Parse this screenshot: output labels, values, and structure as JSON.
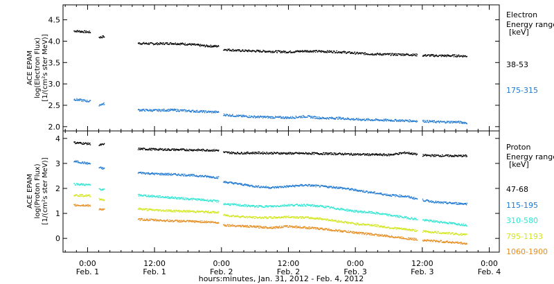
{
  "chart_data": [
    {
      "type": "scatter",
      "panel": "electron",
      "ylabel": [
        "ACE EPAM",
        "log(Electron Flux)",
        "[1/(cm²s ster MeV)]"
      ],
      "ylim": [
        1.9,
        4.85
      ],
      "yticks": [
        2.0,
        2.5,
        3.0,
        3.5,
        4.0,
        4.5
      ],
      "yticklabels": [
        "2.0",
        "2.5",
        "3.0",
        "3.5",
        "4.0",
        "4.5"
      ],
      "legend_title": [
        "Electron",
        "Energy ranges",
        "[keV]"
      ],
      "series": [
        {
          "name": "38-53",
          "color": "#000000",
          "x": [
            -2.5,
            0.5,
            2.0,
            3.0,
            9.0,
            12.0,
            15.0,
            18.0,
            21.0,
            23.5,
            24.3,
            27.0,
            30.0,
            33.0,
            36.0,
            39.0,
            42.0,
            45.0,
            48.0,
            51.0,
            54.0,
            57.0,
            60.0,
            63.0,
            66.0,
            68.0
          ],
          "y": [
            4.25,
            4.22,
            4.1,
            4.12,
            3.96,
            3.95,
            3.96,
            3.94,
            3.9,
            3.89,
            3.82,
            3.79,
            3.78,
            3.77,
            3.76,
            3.78,
            3.77,
            3.76,
            3.73,
            3.71,
            3.7,
            3.7,
            3.68,
            3.67,
            3.67,
            3.66
          ]
        },
        {
          "name": "175-315",
          "color": "#1e78d2",
          "x": [
            -2.5,
            0.5,
            2.0,
            3.0,
            9.0,
            12.0,
            15.0,
            18.0,
            21.0,
            23.5,
            24.3,
            27.0,
            30.0,
            33.0,
            36.0,
            39.0,
            42.0,
            45.0,
            48.0,
            51.0,
            54.0,
            57.0,
            60.0,
            63.0,
            66.0,
            68.0
          ],
          "y": [
            2.65,
            2.6,
            2.52,
            2.55,
            2.4,
            2.39,
            2.4,
            2.38,
            2.36,
            2.35,
            2.29,
            2.26,
            2.24,
            2.23,
            2.22,
            2.25,
            2.21,
            2.21,
            2.18,
            2.17,
            2.16,
            2.15,
            2.14,
            2.12,
            2.12,
            2.1
          ]
        }
      ]
    },
    {
      "type": "scatter",
      "panel": "proton",
      "ylabel": [
        "ACE EPAM",
        "log(Proton Flux)",
        "[1/(cm²s ster MeV)]"
      ],
      "ylim": [
        -0.55,
        4.3
      ],
      "yticks": [
        0,
        1,
        2,
        3,
        4
      ],
      "yticklabels": [
        "0",
        "1",
        "2",
        "3",
        "4"
      ],
      "legend_title": [
        "Proton",
        "Energy ranges",
        "[keV]"
      ],
      "series": [
        {
          "name": "47-68",
          "color": "#000000",
          "x": [
            -2.5,
            0.5,
            2.0,
            3.0,
            9.0,
            12.0,
            15.0,
            18.0,
            21.0,
            23.5,
            24.3,
            27.0,
            30.0,
            33.0,
            36.0,
            39.0,
            42.0,
            45.0,
            48.0,
            51.0,
            54.0,
            57.0,
            60.0,
            63.0,
            66.0,
            68.0
          ],
          "y": [
            3.85,
            3.8,
            3.75,
            3.78,
            3.6,
            3.58,
            3.57,
            3.56,
            3.55,
            3.54,
            3.46,
            3.43,
            3.44,
            3.43,
            3.42,
            3.42,
            3.41,
            3.4,
            3.38,
            3.37,
            3.36,
            3.45,
            3.34,
            3.33,
            3.32,
            3.32
          ]
        },
        {
          "name": "115-195",
          "color": "#1e78d2",
          "x": [
            -2.5,
            0.5,
            2.0,
            3.0,
            9.0,
            12.0,
            15.0,
            18.0,
            21.0,
            23.5,
            24.3,
            27.0,
            30.0,
            33.0,
            36.0,
            39.0,
            42.0,
            45.0,
            48.0,
            51.0,
            54.0,
            57.0,
            60.0,
            63.0,
            66.0,
            68.0
          ],
          "y": [
            3.1,
            3.0,
            2.85,
            2.8,
            2.65,
            2.6,
            2.58,
            2.55,
            2.5,
            2.45,
            2.28,
            2.2,
            2.1,
            2.05,
            2.1,
            2.15,
            2.1,
            2.05,
            1.95,
            1.85,
            1.75,
            1.7,
            1.55,
            1.45,
            1.42,
            1.4
          ]
        },
        {
          "name": "310-580",
          "color": "#2ee6d2",
          "x": [
            -2.5,
            0.5,
            2.0,
            3.0,
            9.0,
            12.0,
            15.0,
            18.0,
            21.0,
            23.5,
            24.3,
            27.0,
            30.0,
            33.0,
            36.0,
            39.0,
            42.0,
            45.0,
            48.0,
            51.0,
            54.0,
            57.0,
            60.0,
            63.0,
            66.0,
            68.0
          ],
          "y": [
            2.2,
            2.15,
            2.0,
            1.95,
            1.75,
            1.7,
            1.65,
            1.6,
            1.55,
            1.5,
            1.4,
            1.35,
            1.3,
            1.3,
            1.35,
            1.35,
            1.3,
            1.2,
            1.1,
            1.05,
            0.95,
            0.85,
            0.75,
            0.68,
            0.6,
            0.55
          ]
        },
        {
          "name": "795-1193",
          "color": "#d2e61e",
          "x": [
            -2.5,
            0.5,
            2.0,
            3.0,
            9.0,
            12.0,
            15.0,
            18.0,
            21.0,
            23.5,
            24.3,
            27.0,
            30.0,
            33.0,
            36.0,
            39.0,
            42.0,
            45.0,
            48.0,
            51.0,
            54.0,
            57.0,
            60.0,
            63.0,
            66.0,
            68.0
          ],
          "y": [
            1.75,
            1.72,
            1.6,
            1.55,
            1.2,
            1.15,
            1.12,
            1.1,
            1.08,
            1.05,
            0.95,
            0.9,
            0.85,
            0.85,
            0.88,
            0.85,
            0.8,
            0.7,
            0.6,
            0.55,
            0.45,
            0.38,
            0.3,
            0.25,
            0.2,
            0.15
          ]
        },
        {
          "name": "1060-1900",
          "color": "#e68c1e",
          "x": [
            -2.5,
            0.5,
            2.0,
            3.0,
            9.0,
            12.0,
            15.0,
            18.0,
            21.0,
            23.5,
            24.3,
            27.0,
            30.0,
            33.0,
            36.0,
            39.0,
            42.0,
            45.0,
            48.0,
            51.0,
            54.0,
            57.0,
            60.0,
            63.0,
            66.0,
            68.0
          ],
          "y": [
            1.35,
            1.33,
            1.2,
            1.15,
            0.78,
            0.75,
            0.72,
            0.7,
            0.68,
            0.65,
            0.55,
            0.52,
            0.48,
            0.45,
            0.5,
            0.45,
            0.4,
            0.32,
            0.25,
            0.18,
            0.1,
            0.02,
            -0.05,
            -0.1,
            -0.15,
            -0.2
          ]
        }
      ]
    }
  ],
  "x_axis": {
    "xlim_hours": [
      -4.4,
      73.8
    ],
    "ticks_hours": [
      0,
      12,
      24,
      36,
      48,
      60,
      72
    ],
    "tick_times": [
      "0:00",
      "12:00",
      "0:00",
      "12:00",
      "0:00",
      "12:00",
      "0:00"
    ],
    "tick_dates": [
      "Feb. 1",
      "Feb. 1",
      "Feb. 2",
      "Feb. 2",
      "Feb. 3",
      "Feb. 3",
      "Feb. 4"
    ],
    "xlabel": "hours:minutes, Jan. 31, 2012 - Feb. 4, 2012"
  },
  "colors": {
    "black": "#000000",
    "blue": "#1e78d2",
    "cyan": "#2ee6d2",
    "yellow": "#d2e61e",
    "orange": "#e68c1e"
  }
}
